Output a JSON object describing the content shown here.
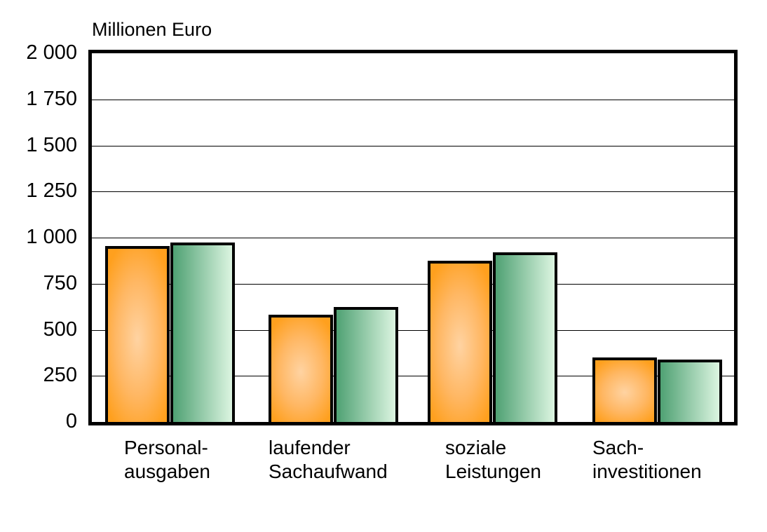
{
  "chart_data": {
    "type": "bar",
    "title": "Millionen Euro",
    "ylabel": "Millionen Euro",
    "xlabel": "",
    "categories": [
      "Personal-\nausgaben",
      "laufender\nSachaufwand",
      "soziale\nLeistungen",
      "Sach-\ninvestitionen"
    ],
    "series": [
      {
        "name": "orange",
        "values": [
          955,
          580,
          875,
          350
        ]
      },
      {
        "name": "green",
        "values": [
          975,
          625,
          920,
          340
        ]
      }
    ],
    "ylim": [
      0,
      2000
    ],
    "ytick_step": 250,
    "ytick_labels": [
      "2 000",
      "1 750",
      "1 500",
      "1 250",
      "1 000",
      "750",
      "500",
      "250",
      "0"
    ],
    "grid": true,
    "legend_visible": false
  },
  "colors": {
    "orange_edge": "#FFA01E",
    "orange_mid": "#FFB763",
    "orange_center": "#FFD3A2",
    "green_left": "#4FA173",
    "green_right": "#DCF5E1",
    "axis": "#000000",
    "text": "#000000",
    "background": "#FFFFFF"
  }
}
